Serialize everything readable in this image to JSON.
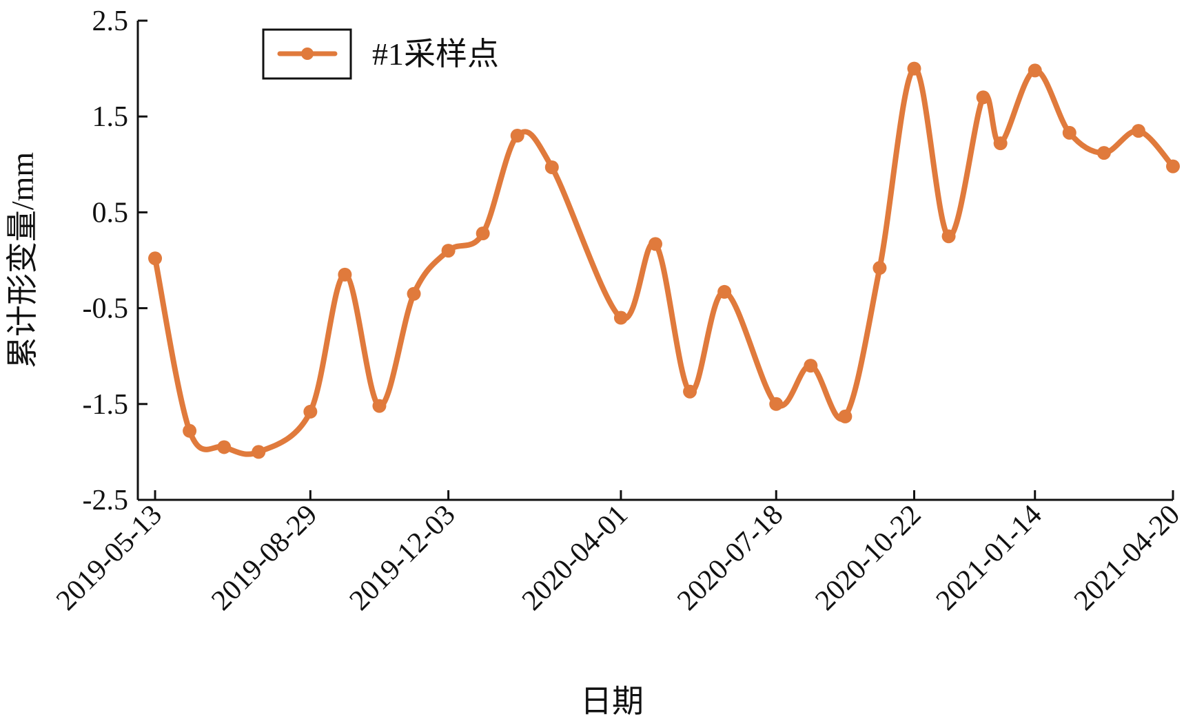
{
  "chart_data": {
    "type": "line",
    "title": "",
    "xlabel": "日期",
    "ylabel": "累计形变量/mm",
    "ylim": [
      -2.5,
      2.5
    ],
    "yticks": [
      "2.5",
      "1.5",
      "0.5",
      "-0.5",
      "-1.5",
      "-2.5"
    ],
    "ytick_values": [
      2.5,
      1.5,
      0.5,
      -0.5,
      -1.5,
      -2.5
    ],
    "xlim": [
      "2019-05-01",
      "2021-04-20"
    ],
    "xtick_labels": [
      "2019-05-13",
      "2019-08-29",
      "2019-12-03",
      "2020-04-01",
      "2020-07-18",
      "2020-10-22",
      "2021-01-14",
      "2021-04-20"
    ],
    "grid": false,
    "legend_position": "top-left",
    "color": "#E07A3C",
    "series": [
      {
        "name": "#1采样点",
        "x": [
          "2019-05-13",
          "2019-06-06",
          "2019-06-30",
          "2019-07-24",
          "2019-08-29",
          "2019-09-22",
          "2019-10-16",
          "2019-11-09",
          "2019-12-03",
          "2019-12-27",
          "2020-01-20",
          "2020-02-13",
          "2020-04-01",
          "2020-04-25",
          "2020-05-19",
          "2020-06-12",
          "2020-07-18",
          "2020-08-11",
          "2020-09-04",
          "2020-09-28",
          "2020-10-22",
          "2020-11-15",
          "2020-12-09",
          "2020-12-21",
          "2021-01-14",
          "2021-02-07",
          "2021-03-03",
          "2021-03-27",
          "2021-04-20"
        ],
        "values": [
          0.02,
          -1.78,
          -1.95,
          -2.0,
          -1.58,
          -0.15,
          -1.52,
          -0.35,
          0.1,
          0.28,
          1.3,
          0.97,
          -0.6,
          0.17,
          -1.37,
          -0.33,
          -1.5,
          -1.1,
          -1.63,
          -0.08,
          2.0,
          0.25,
          1.7,
          1.22,
          1.98,
          1.33,
          1.12,
          1.35,
          0.98
        ]
      }
    ]
  }
}
